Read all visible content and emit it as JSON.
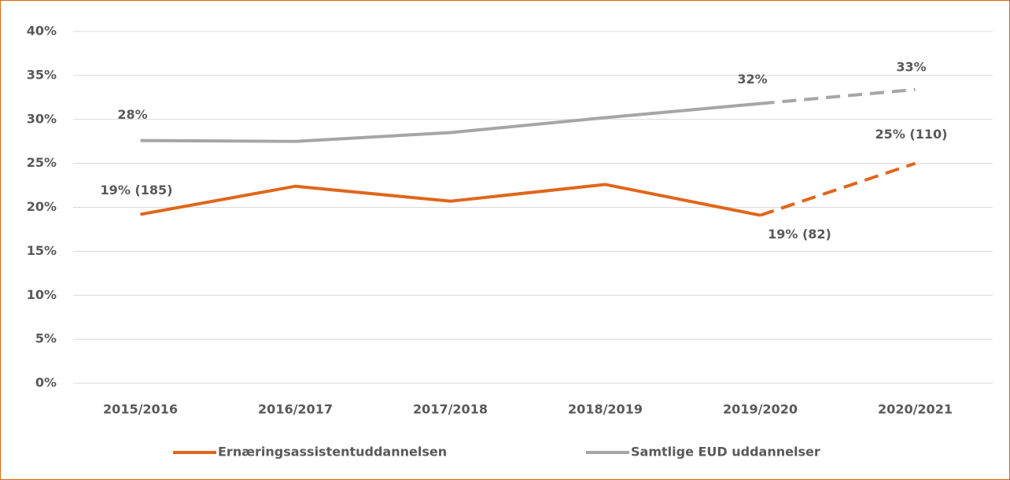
{
  "chart_data": {
    "type": "line",
    "categories": [
      "2015/2016",
      "2016/2017",
      "2017/2018",
      "2018/2019",
      "2019/2020",
      "2020/2021"
    ],
    "series": [
      {
        "name": "Ernæringsassistentuddannelsen",
        "color": "#e0661c",
        "values": [
          19.2,
          22.4,
          20.7,
          22.6,
          19.1,
          25.0
        ],
        "value_labels": [
          "19% (185)",
          null,
          null,
          null,
          "19% (82)",
          "25% (110)"
        ],
        "dashed_from": 4
      },
      {
        "name": "Samtlige EUD uddannelser",
        "color": "#a6a6a6",
        "values": [
          27.6,
          27.5,
          28.5,
          30.2,
          31.8,
          33.4
        ],
        "value_labels": [
          "28%",
          null,
          null,
          null,
          "32%",
          "33%"
        ],
        "dashed_from": 4
      }
    ],
    "ylim": [
      0,
      40
    ],
    "yticks": [
      {
        "value": 0,
        "label": "0%"
      },
      {
        "value": 5,
        "label": "5%"
      },
      {
        "value": 10,
        "label": "10%"
      },
      {
        "value": 15,
        "label": "15%"
      },
      {
        "value": 20,
        "label": "20%"
      },
      {
        "value": 25,
        "label": "25%"
      },
      {
        "value": 30,
        "label": "30%"
      },
      {
        "value": 35,
        "label": "35%"
      },
      {
        "value": 40,
        "label": "40%"
      }
    ],
    "grid": true,
    "legend": "bottom"
  }
}
